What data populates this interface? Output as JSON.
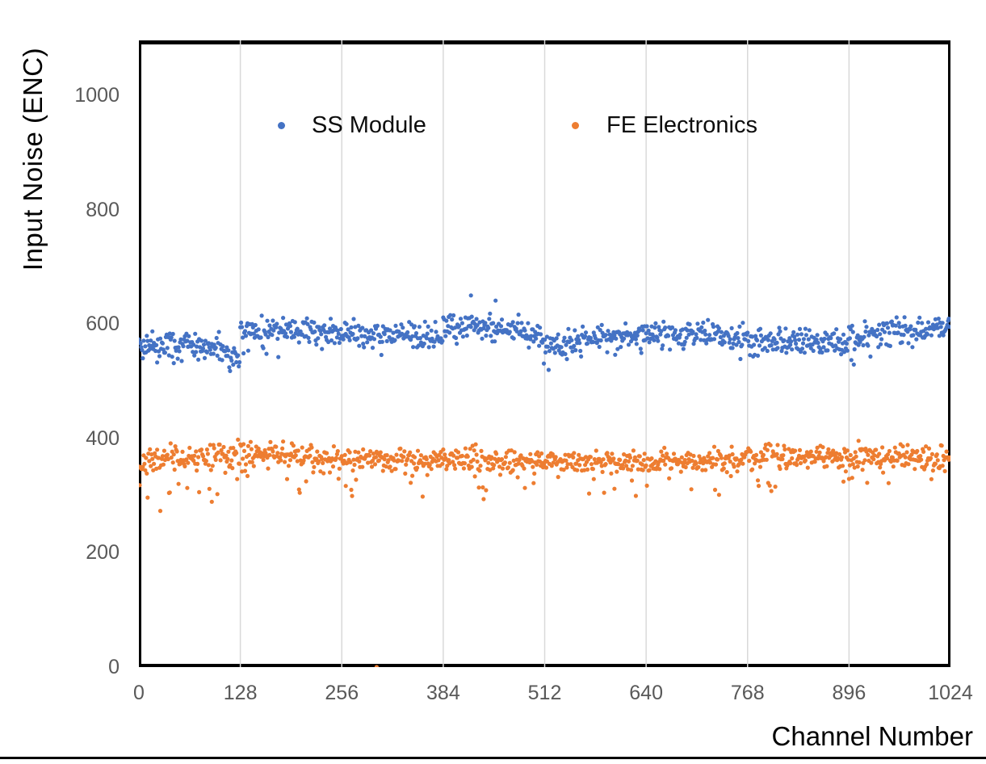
{
  "chart_data": {
    "type": "scatter",
    "title": "",
    "xlabel": "Channel Number",
    "ylabel": "Input Noise (ENC)",
    "xlim": [
      0,
      1024
    ],
    "ylim": [
      0,
      1096
    ],
    "x_ticks": [
      0,
      128,
      256,
      384,
      512,
      640,
      768,
      896,
      1024
    ],
    "y_ticks": [
      0,
      200,
      400,
      600,
      800,
      1000
    ],
    "grid": "vertical-only",
    "legend_position": "inside-top",
    "marker_radius_px": 2.6,
    "points_per_series": 1024,
    "series": [
      {
        "name": "SS Module",
        "color": "#4472C4",
        "seed": 42,
        "approx_mean": 578,
        "segments": [
          {
            "from": 0,
            "to": 96,
            "mean_start": 563,
            "mean_end": 560,
            "sd": 10,
            "tail_prob": 0.06,
            "tail_min": -12,
            "tail_max": -30
          },
          {
            "from": 96,
            "to": 128,
            "mean_start": 556,
            "mean_end": 536,
            "sd": 11,
            "tail_prob": 0.06,
            "tail_min": -8,
            "tail_max": -22
          },
          {
            "from": 128,
            "to": 256,
            "mean_start": 589,
            "mean_end": 586,
            "sd": 10,
            "tail_prob": 0.05,
            "tail_min": -15,
            "tail_max": -35
          },
          {
            "from": 256,
            "to": 384,
            "mean_start": 583,
            "mean_end": 581,
            "sd": 11,
            "tail_prob": 0.05,
            "tail_min": -15,
            "tail_max": -35
          },
          {
            "from": 384,
            "to": 480,
            "mean_start": 597,
            "mean_end": 592,
            "sd": 12,
            "tail_prob": 0.04,
            "tail_min": -15,
            "tail_max": -35
          },
          {
            "from": 480,
            "to": 512,
            "mean_start": 588,
            "mean_end": 574,
            "sd": 11,
            "tail_prob": 0.05,
            "tail_min": -12,
            "tail_max": -28
          },
          {
            "from": 512,
            "to": 576,
            "mean_start": 556,
            "mean_end": 572,
            "sd": 12,
            "tail_prob": 0.09,
            "tail_min": -8,
            "tail_max": -26
          },
          {
            "from": 576,
            "to": 640,
            "mean_start": 577,
            "mean_end": 581,
            "sd": 10,
            "tail_prob": 0.04,
            "tail_min": -15,
            "tail_max": -30
          },
          {
            "from": 640,
            "to": 768,
            "mean_start": 583,
            "mean_end": 578,
            "sd": 11,
            "tail_prob": 0.04,
            "tail_min": -15,
            "tail_max": -30
          },
          {
            "from": 768,
            "to": 896,
            "mean_start": 570,
            "mean_end": 567,
            "sd": 11,
            "tail_prob": 0.05,
            "tail_min": -15,
            "tail_max": -30
          },
          {
            "from": 896,
            "to": 1024,
            "mean_start": 577,
            "mean_end": 594,
            "sd": 11,
            "tail_prob": 0.04,
            "tail_min": -15,
            "tail_max": -30
          }
        ],
        "outliers": [
          [
            419,
            650
          ],
          [
            450,
            641
          ]
        ]
      },
      {
        "name": "FE Electronics",
        "color": "#ED7D31",
        "seed": 7,
        "approx_mean": 363,
        "segments": [
          {
            "from": 0,
            "to": 32,
            "mean_start": 355,
            "mean_end": 360,
            "sd": 10,
            "tail_prob": 0.12,
            "tail_min": -28,
            "tail_max": -62
          },
          {
            "from": 32,
            "to": 128,
            "mean_start": 362,
            "mean_end": 370,
            "sd": 11,
            "tail_prob": 0.13,
            "tail_min": -30,
            "tail_max": -75
          },
          {
            "from": 128,
            "to": 256,
            "mean_start": 373,
            "mean_end": 368,
            "sd": 10,
            "tail_prob": 0.07,
            "tail_min": -25,
            "tail_max": -60
          },
          {
            "from": 256,
            "to": 384,
            "mean_start": 366,
            "mean_end": 363,
            "sd": 10,
            "tail_prob": 0.06,
            "tail_min": -25,
            "tail_max": -60
          },
          {
            "from": 384,
            "to": 512,
            "mean_start": 364,
            "mean_end": 361,
            "sd": 10,
            "tail_prob": 0.06,
            "tail_min": -25,
            "tail_max": -55
          },
          {
            "from": 512,
            "to": 640,
            "mean_start": 361,
            "mean_end": 358,
            "sd": 10,
            "tail_prob": 0.06,
            "tail_min": -25,
            "tail_max": -55
          },
          {
            "from": 640,
            "to": 768,
            "mean_start": 359,
            "mean_end": 363,
            "sd": 10,
            "tail_prob": 0.06,
            "tail_min": -25,
            "tail_max": -55
          },
          {
            "from": 768,
            "to": 896,
            "mean_start": 370,
            "mean_end": 367,
            "sd": 11,
            "tail_prob": 0.07,
            "tail_min": -25,
            "tail_max": -60
          },
          {
            "from": 896,
            "to": 1024,
            "mean_start": 372,
            "mean_end": 363,
            "sd": 11,
            "tail_prob": 0.06,
            "tail_min": -25,
            "tail_max": -55
          }
        ],
        "outliers": [
          [
            1,
            318
          ],
          [
            300,
            0
          ]
        ]
      }
    ]
  },
  "colors": {
    "series_blue": "#4472C4",
    "series_orange": "#ED7D31",
    "gridline": "#D9D9D9",
    "tick_label": "#595959",
    "axis_title": "#000000",
    "plot_border": "#000000"
  }
}
